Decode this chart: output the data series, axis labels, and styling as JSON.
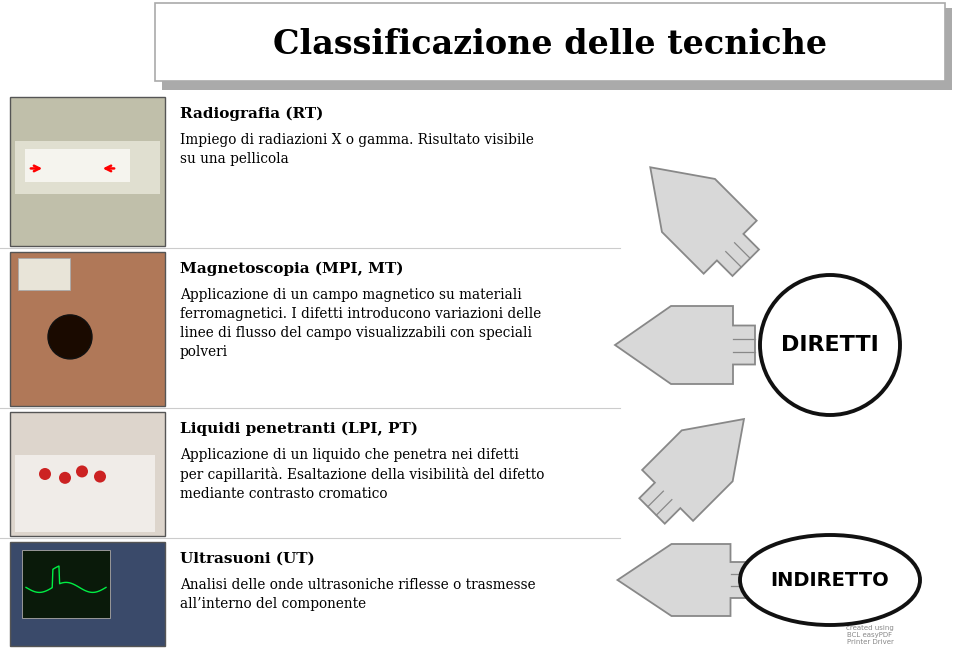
{
  "title": "Classificazione delle tecniche",
  "background_color": "#ffffff",
  "title_fontsize": 24,
  "title_font_weight": "bold",
  "arrow_fill": "#d8d8d8",
  "arrow_edge": "#888888",
  "circle_edge": "#111111",
  "circle_face": "#ffffff",
  "diretti_label": "DIRETTI",
  "indiretto_label": "INDIRETTO",
  "sections": [
    {
      "title": "Radiografia (RT)",
      "body": "Impiego di radiazioni X o gamma. Risultato visibile\nsu una pellicola"
    },
    {
      "title": "Magnetoscopia (MPI, MT)",
      "body": "Applicazione di un campo magnetico su materiali\nferromagnetici. I difetti introducono variazioni delle\nlinee di flusso del campo visualizzabili con speciali\npolveri"
    },
    {
      "title": "Liquidi penetranti (LPI, PT)",
      "body": "Applicazione di un liquido che penetra nei difetti\nper capillarità. Esaltazione della visibilità del difetto\nmediante contrasto cromatico"
    },
    {
      "title": "Ultrasuoni (UT)",
      "body": "Analisi delle onde ultrasoniche riflesse o trasmesse\nall’interno del componente"
    }
  ]
}
